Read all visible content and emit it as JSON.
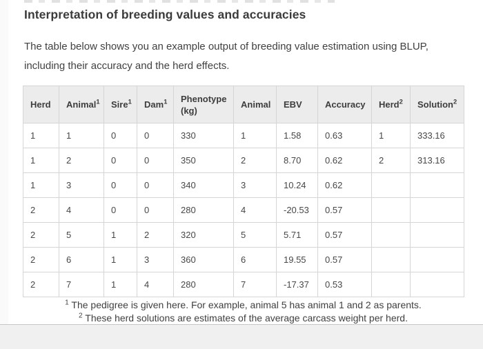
{
  "page": {
    "title": "Interpretation of breeding values and accuracies",
    "intro": "The table below shows you an example output of breeding value estimation using BLUP, including their accuracy and the herd effects."
  },
  "table": {
    "columns": [
      {
        "label": "Herd",
        "sup": ""
      },
      {
        "label": "Animal",
        "sup": "1"
      },
      {
        "label": "Sire",
        "sup": "1"
      },
      {
        "label": "Dam",
        "sup": "1"
      },
      {
        "label": "Phenotype (kg)",
        "sup": ""
      },
      {
        "label": "Animal",
        "sup": ""
      },
      {
        "label": "EBV",
        "sup": ""
      },
      {
        "label": "Accuracy",
        "sup": ""
      },
      {
        "label": "Herd",
        "sup": "2"
      },
      {
        "label": "Solution",
        "sup": "2"
      }
    ],
    "rows": [
      [
        "1",
        "1",
        "0",
        "0",
        "330",
        "1",
        "1.58",
        "0.63",
        "1",
        "333.16"
      ],
      [
        "1",
        "2",
        "0",
        "0",
        "350",
        "2",
        "8.70",
        "0.62",
        "2",
        "313.16"
      ],
      [
        "1",
        "3",
        "0",
        "0",
        "340",
        "3",
        "10.24",
        "0.62",
        "",
        ""
      ],
      [
        "2",
        "4",
        "0",
        "0",
        "280",
        "4",
        "-20.53",
        "0.57",
        "",
        ""
      ],
      [
        "2",
        "5",
        "1",
        "2",
        "320",
        "5",
        "5.71",
        "0.57",
        "",
        ""
      ],
      [
        "2",
        "6",
        "1",
        "3",
        "360",
        "6",
        "19.55",
        "0.57",
        "",
        ""
      ],
      [
        "2",
        "7",
        "1",
        "4",
        "280",
        "7",
        "-17.37",
        "0.53",
        "",
        ""
      ]
    ]
  },
  "footnotes": [
    {
      "marker": "1",
      "text": "The pedigree is given here. For example, animal 5 has animal 1 and 2 as parents."
    },
    {
      "marker": "2",
      "text": "These herd solutions are estimates of the average carcass weight per herd."
    }
  ],
  "colors": {
    "heading_text": "#3b3b3b",
    "body_text": "#414141",
    "table_header_bg": "#ececec",
    "table_border": "#d5d5d5",
    "footer_bg": "#f0f0f0"
  }
}
